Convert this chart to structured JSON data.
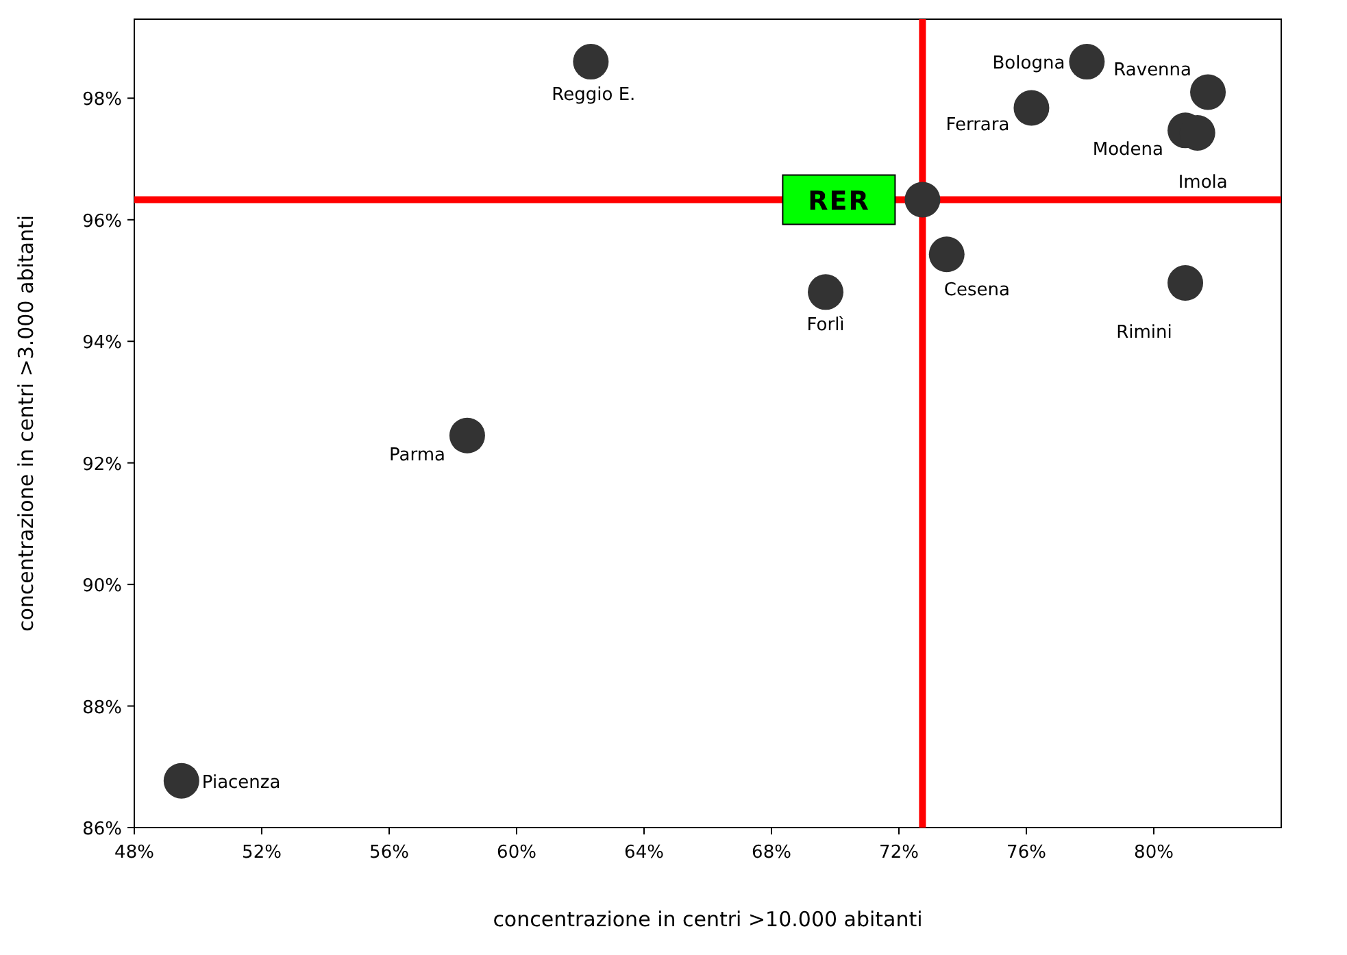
{
  "chart_data": {
    "type": "scatter",
    "xlabel": "concentrazione in centri >10.000 abitanti",
    "ylabel": "concentrazione in centri >3.000 abitanti",
    "x": [
      49.48,
      58.45,
      62.33,
      69.7,
      72.74,
      73.5,
      76.16,
      77.9,
      80.99,
      81.37,
      81.7,
      80.99
    ],
    "series": [
      {
        "color": "#333333",
        "values": [
          86.77,
          92.45,
          98.6,
          94.81,
          96.33,
          95.43,
          97.84,
          98.6,
          97.47,
          97.43,
          98.1,
          94.96
        ]
      }
    ],
    "xlim": [
      48,
      84
    ],
    "ylim": [
      86,
      99.3
    ],
    "xticks": [
      {
        "value": 48,
        "label": "48%"
      },
      {
        "value": 52,
        "label": "52%"
      },
      {
        "value": 56,
        "label": "56%"
      },
      {
        "value": 60,
        "label": "60%"
      },
      {
        "value": 64,
        "label": "64%"
      },
      {
        "value": 68,
        "label": "68%"
      },
      {
        "value": 72,
        "label": "72%"
      },
      {
        "value": 76,
        "label": "76%"
      },
      {
        "value": 80,
        "label": "80%"
      }
    ],
    "yticks": [
      {
        "value": 86,
        "label": "86%"
      },
      {
        "value": 88,
        "label": "88%"
      },
      {
        "value": 90,
        "label": "90%"
      },
      {
        "value": 92,
        "label": "92%"
      },
      {
        "value": 94,
        "label": "94%"
      },
      {
        "value": 96,
        "label": "96%"
      },
      {
        "value": 98,
        "label": "98%"
      }
    ],
    "ref_lines": [
      {
        "axis": "x",
        "value": 72.74,
        "color": "#ff0000"
      },
      {
        "axis": "y",
        "value": 96.33,
        "label": "RER",
        "color": "#ff0000"
      }
    ],
    "annotations": [
      {
        "text": "Piacenza",
        "x": 49.48,
        "y": 86.77
      },
      {
        "text": "Parma",
        "x": 58.45,
        "y": 92.45
      },
      {
        "text": "Reggio E.",
        "x": 62.33,
        "y": 98.6
      },
      {
        "text": "Forlì",
        "x": 69.7,
        "y": 94.81
      },
      {
        "text": "Cesena",
        "x": 73.5,
        "y": 95.43
      },
      {
        "text": "Ferrara",
        "x": 76.16,
        "y": 97.84
      },
      {
        "text": "Bologna",
        "x": 77.9,
        "y": 98.6
      },
      {
        "text": "Modena",
        "x": 80.99,
        "y": 97.47
      },
      {
        "text": "Imola",
        "x": 81.37,
        "y": 97.43
      },
      {
        "text": "Ravenna",
        "x": 81.7,
        "y": 98.1
      },
      {
        "text": "Rimini",
        "x": 80.99,
        "y": 94.96
      }
    ],
    "marker": "circle",
    "grid": false
  }
}
